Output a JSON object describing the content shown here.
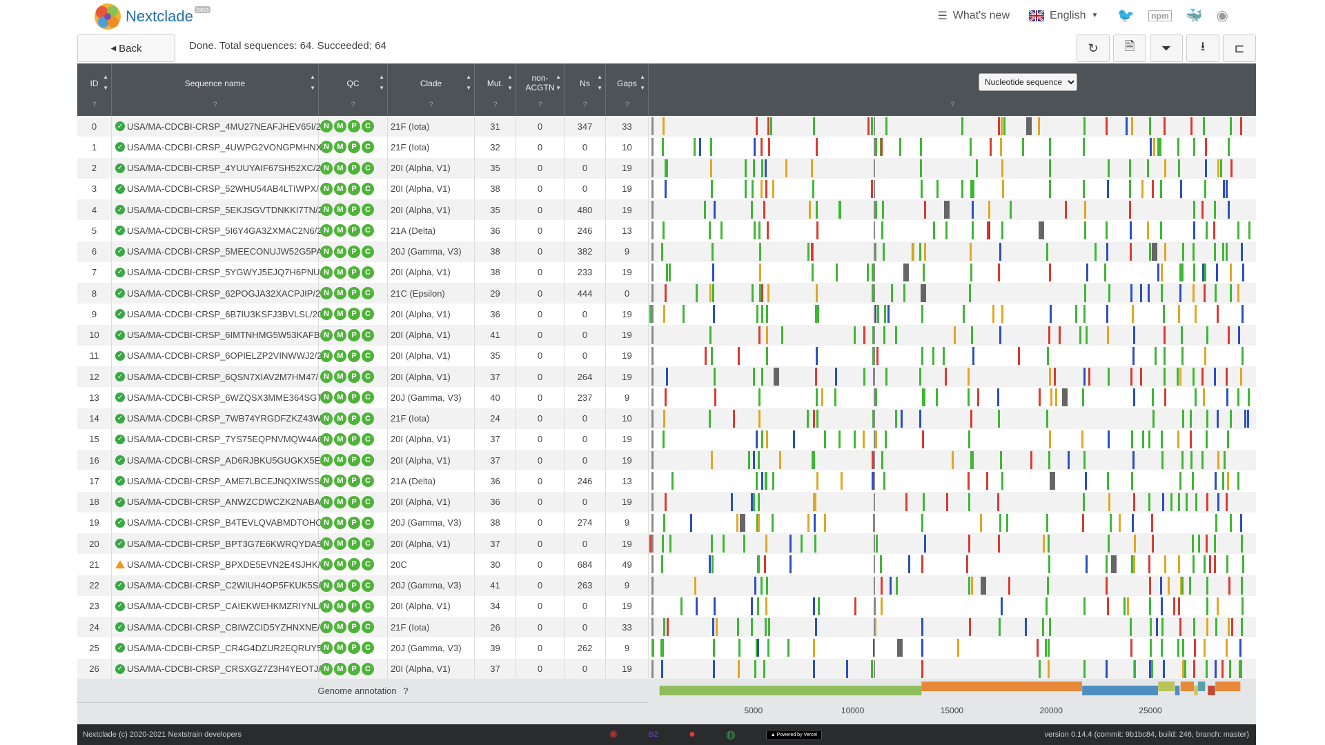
{
  "app": {
    "name": "Nextclade",
    "badge": "beta"
  },
  "nav": {
    "whats_new": "What's new",
    "language": "English"
  },
  "toolbar": {
    "back_label": "Back",
    "status": "Done. Total sequences: 64. Succeeded: 64"
  },
  "columns": {
    "id": "ID",
    "name": "Sequence name",
    "qc": "QC",
    "clade": "Clade",
    "mut": "Mut.",
    "nonacgtn": "non-ACGTN",
    "ns": "Ns",
    "gaps": "Gaps",
    "help": "?"
  },
  "seq_view": {
    "options": [
      "Nucleotide sequence"
    ],
    "selected": "Nucleotide sequence"
  },
  "qc_letters": [
    "N",
    "M",
    "P",
    "C"
  ],
  "rows": [
    {
      "id": "0",
      "name": "USA/MA-CDCBI-CRSP_4MU27NEAFJHEV65I/2",
      "status": "ok",
      "clade": "21F (Iota)",
      "mut": "31",
      "nonacgtn": "0",
      "ns": "347",
      "gaps": "33"
    },
    {
      "id": "1",
      "name": "USA/MA-CDCBI-CRSP_4UWPG2VONGPMHNX",
      "status": "ok",
      "clade": "21F (Iota)",
      "mut": "32",
      "nonacgtn": "0",
      "ns": "0",
      "gaps": "10"
    },
    {
      "id": "2",
      "name": "USA/MA-CDCBI-CRSP_4YUUYAIF67SH52XC/2",
      "status": "ok",
      "clade": "20I (Alpha, V1)",
      "mut": "35",
      "nonacgtn": "0",
      "ns": "0",
      "gaps": "19"
    },
    {
      "id": "3",
      "name": "USA/MA-CDCBI-CRSP_52WHU54AB4LTIWPX/",
      "status": "ok",
      "clade": "20I (Alpha, V1)",
      "mut": "38",
      "nonacgtn": "0",
      "ns": "0",
      "gaps": "19"
    },
    {
      "id": "4",
      "name": "USA/MA-CDCBI-CRSP_5EKJSGVTDNKKI7TN/2",
      "status": "ok",
      "clade": "20I (Alpha, V1)",
      "mut": "35",
      "nonacgtn": "0",
      "ns": "480",
      "gaps": "19"
    },
    {
      "id": "5",
      "name": "USA/MA-CDCBI-CRSP_5I6Y4GA3ZXMAC2N6/2",
      "status": "ok",
      "clade": "21A (Delta)",
      "mut": "36",
      "nonacgtn": "0",
      "ns": "246",
      "gaps": "13"
    },
    {
      "id": "6",
      "name": "USA/MA-CDCBI-CRSP_5MEECONUJW52G5PA",
      "status": "ok",
      "clade": "20J (Gamma, V3)",
      "mut": "38",
      "nonacgtn": "0",
      "ns": "382",
      "gaps": "9"
    },
    {
      "id": "7",
      "name": "USA/MA-CDCBI-CRSP_5YGWYJ5EJQ7H6PNU/",
      "status": "ok",
      "clade": "20I (Alpha, V1)",
      "mut": "38",
      "nonacgtn": "0",
      "ns": "233",
      "gaps": "19"
    },
    {
      "id": "8",
      "name": "USA/MA-CDCBI-CRSP_62POGJA32XACPJIP/20",
      "status": "ok",
      "clade": "21C (Epsilon)",
      "mut": "29",
      "nonacgtn": "0",
      "ns": "444",
      "gaps": "0"
    },
    {
      "id": "9",
      "name": "USA/MA-CDCBI-CRSP_6B7IU3KSFJ3BVLSL/20",
      "status": "ok",
      "clade": "20I (Alpha, V1)",
      "mut": "36",
      "nonacgtn": "0",
      "ns": "0",
      "gaps": "19"
    },
    {
      "id": "10",
      "name": "USA/MA-CDCBI-CRSP_6IMTNHMG5W53KAFB",
      "status": "ok",
      "clade": "20I (Alpha, V1)",
      "mut": "41",
      "nonacgtn": "0",
      "ns": "0",
      "gaps": "19"
    },
    {
      "id": "11",
      "name": "USA/MA-CDCBI-CRSP_6OPIELZP2VINWWJ2/2",
      "status": "ok",
      "clade": "20I (Alpha, V1)",
      "mut": "35",
      "nonacgtn": "0",
      "ns": "0",
      "gaps": "19"
    },
    {
      "id": "12",
      "name": "USA/MA-CDCBI-CRSP_6QSN7XIAV2M7HM47/",
      "status": "ok",
      "clade": "20I (Alpha, V1)",
      "mut": "37",
      "nonacgtn": "0",
      "ns": "264",
      "gaps": "19"
    },
    {
      "id": "13",
      "name": "USA/MA-CDCBI-CRSP_6WZQSX3MME364SGT",
      "status": "ok",
      "clade": "20J (Gamma, V3)",
      "mut": "40",
      "nonacgtn": "0",
      "ns": "237",
      "gaps": "9"
    },
    {
      "id": "14",
      "name": "USA/MA-CDCBI-CRSP_7WB74YRGDFZKZ43W",
      "status": "ok",
      "clade": "21F (Iota)",
      "mut": "24",
      "nonacgtn": "0",
      "ns": "0",
      "gaps": "10"
    },
    {
      "id": "15",
      "name": "USA/MA-CDCBI-CRSP_7YS75EQPNVMQW4A6",
      "status": "ok",
      "clade": "20I (Alpha, V1)",
      "mut": "37",
      "nonacgtn": "0",
      "ns": "0",
      "gaps": "19"
    },
    {
      "id": "16",
      "name": "USA/MA-CDCBI-CRSP_AD6RJBKU5GUGKX5E/",
      "status": "ok",
      "clade": "20I (Alpha, V1)",
      "mut": "37",
      "nonacgtn": "0",
      "ns": "0",
      "gaps": "19"
    },
    {
      "id": "17",
      "name": "USA/MA-CDCBI-CRSP_AME7LBCEJNQXIWSS/2",
      "status": "ok",
      "clade": "21A (Delta)",
      "mut": "36",
      "nonacgtn": "0",
      "ns": "246",
      "gaps": "13"
    },
    {
      "id": "18",
      "name": "USA/MA-CDCBI-CRSP_ANWZCDWCZK2NABA",
      "status": "ok",
      "clade": "20I (Alpha, V1)",
      "mut": "36",
      "nonacgtn": "0",
      "ns": "0",
      "gaps": "19"
    },
    {
      "id": "19",
      "name": "USA/MA-CDCBI-CRSP_B4TEVLQVABMDTOHC",
      "status": "ok",
      "clade": "20J (Gamma, V3)",
      "mut": "38",
      "nonacgtn": "0",
      "ns": "274",
      "gaps": "9"
    },
    {
      "id": "20",
      "name": "USA/MA-CDCBI-CRSP_BPT3G7E6KWRQYDA5/",
      "status": "ok",
      "clade": "20I (Alpha, V1)",
      "mut": "37",
      "nonacgtn": "0",
      "ns": "0",
      "gaps": "19"
    },
    {
      "id": "21",
      "name": "USA/MA-CDCBI-CRSP_BPXDE5EVN2E4SJHK/2",
      "status": "warn",
      "clade": "20C",
      "mut": "30",
      "nonacgtn": "0",
      "ns": "684",
      "gaps": "49"
    },
    {
      "id": "22",
      "name": "USA/MA-CDCBI-CRSP_C2WIUH4OP5FKUK5S/",
      "status": "ok",
      "clade": "20J (Gamma, V3)",
      "mut": "41",
      "nonacgtn": "0",
      "ns": "263",
      "gaps": "9"
    },
    {
      "id": "23",
      "name": "USA/MA-CDCBI-CRSP_CAIEKWEHKMZRIYNL/",
      "status": "ok",
      "clade": "20I (Alpha, V1)",
      "mut": "34",
      "nonacgtn": "0",
      "ns": "0",
      "gaps": "19"
    },
    {
      "id": "24",
      "name": "USA/MA-CDCBI-CRSP_CBIWZCID5YZHNXNE/",
      "status": "ok",
      "clade": "21F (Iota)",
      "mut": "26",
      "nonacgtn": "0",
      "ns": "0",
      "gaps": "33"
    },
    {
      "id": "25",
      "name": "USA/MA-CDCBI-CRSP_CR4G4DZUR2EQRUY5/",
      "status": "ok",
      "clade": "20J (Gamma, V3)",
      "mut": "39",
      "nonacgtn": "0",
      "ns": "262",
      "gaps": "9"
    },
    {
      "id": "26",
      "name": "USA/MA-CDCBI-CRSP_CRSXGZ7Z3H4YEOTJ/2",
      "status": "ok",
      "clade": "20I (Alpha, V1)",
      "mut": "37",
      "nonacgtn": "0",
      "ns": "0",
      "gaps": "19"
    }
  ],
  "genome": {
    "annotation_label": "Genome annotation",
    "length": 29903,
    "ticks": [
      5000,
      10000,
      15000,
      20000,
      25000
    ],
    "colors": {
      "A": "#db3a31",
      "C": "#2b4ec2",
      "G": "#e3a622",
      "T": "#3eb734",
      "N": "#666666",
      "gap": "#8a8a8a"
    },
    "genes": [
      {
        "start": 266,
        "end": 13468,
        "color": "#8fbd5a"
      },
      {
        "start": 13468,
        "end": 21555,
        "color": "#e8883a"
      },
      {
        "start": 21563,
        "end": 25384,
        "color": "#4f8fc0"
      },
      {
        "start": 25393,
        "end": 26220,
        "color": "#b8c45a"
      },
      {
        "start": 26245,
        "end": 26472,
        "color": "#4f8fc0"
      },
      {
        "start": 26523,
        "end": 27191,
        "color": "#e8883a"
      },
      {
        "start": 27202,
        "end": 27387,
        "color": "#d2c06a"
      },
      {
        "start": 27394,
        "end": 27759,
        "color": "#5aa0a8"
      },
      {
        "start": 27894,
        "end": 28259,
        "color": "#c24a3a"
      },
      {
        "start": 28274,
        "end": 29533,
        "color": "#e8883a"
      }
    ]
  },
  "footer": {
    "copyright": "Nextclade (c) 2020-2021 Nextstrain developers",
    "version": "version 0.14.4 (commit: 9b1bc84, build: 246, branch: master)",
    "vercel": "Powered by Vercel"
  }
}
